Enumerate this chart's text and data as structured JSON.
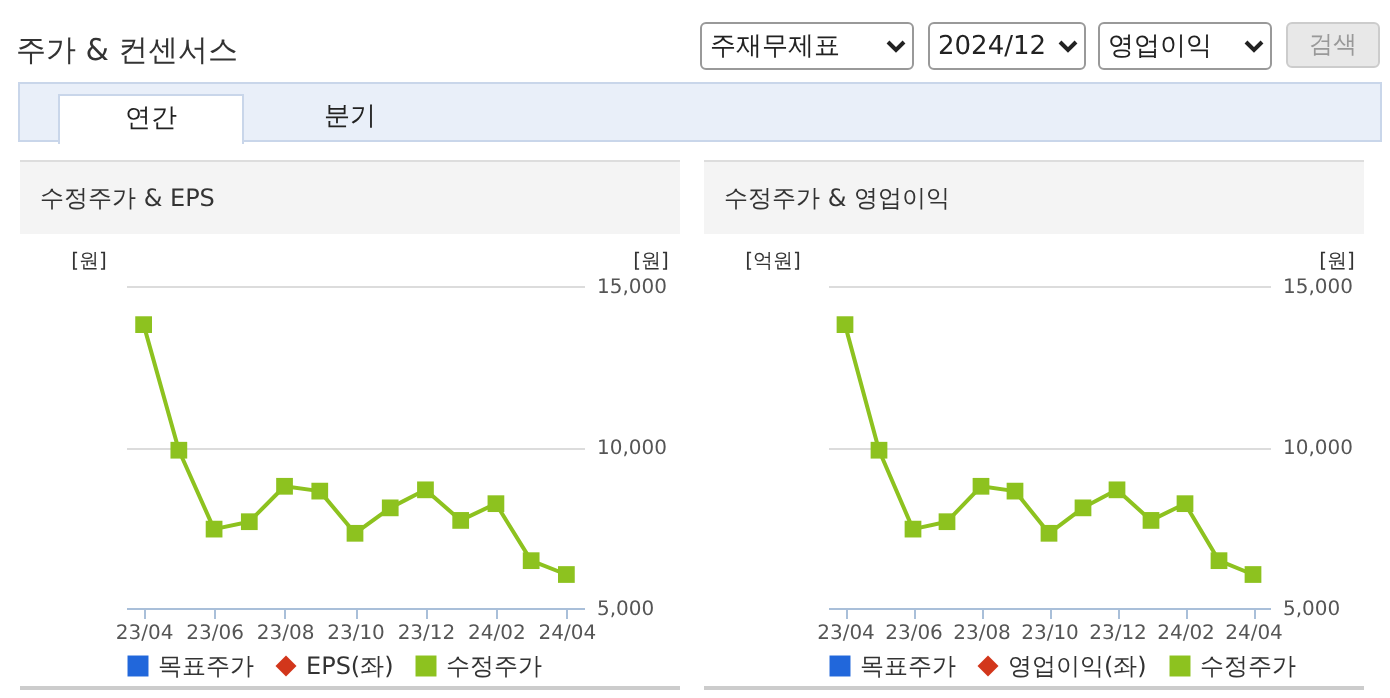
{
  "chart_data": [
    {
      "type": "other",
      "title": "주가 & 컨센서스",
      "annotations": [
        "주재무제표",
        "2024/12",
        "영업이익",
        "검색",
        "연간",
        "분기"
      ]
    },
    {
      "type": "line",
      "title": "수정주가 & EPS",
      "ylabel": "[원]",
      "y2label": "[원]",
      "categories": [
        "23/04",
        null,
        "23/06",
        null,
        "23/08",
        null,
        "23/10",
        null,
        "23/12",
        null,
        "24/02",
        null,
        "24/04"
      ],
      "series": [
        {
          "name": "목표주가",
          "type": "scatter",
          "marker": "square",
          "color": "#2167db",
          "axis": "y2",
          "values": [
            null,
            null,
            null,
            null,
            null,
            null,
            null,
            null,
            null,
            null,
            null,
            null,
            null
          ]
        },
        {
          "name": "EPS(좌)",
          "type": "line",
          "marker": "diamond",
          "color": "#d2361b",
          "axis": "y",
          "values": [
            null,
            null,
            null,
            null,
            null,
            null,
            null,
            null,
            null,
            null,
            null,
            null,
            null
          ]
        },
        {
          "name": "수정주가",
          "type": "line",
          "marker": "square",
          "color": "#8dc21f",
          "axis": "y2",
          "values": [
            13800,
            9900,
            7450,
            7680,
            8780,
            8630,
            7320,
            8110,
            8670,
            7720,
            8240,
            6470,
            6040
          ]
        }
      ],
      "y2lim": [
        5000,
        15000
      ],
      "y2ticks": [
        {
          "value": 5000,
          "label": "5,000"
        },
        {
          "value": 10000,
          "label": "10,000"
        },
        {
          "value": 15000,
          "label": "15,000"
        }
      ],
      "grid": "y",
      "legend": "bottom"
    },
    {
      "type": "line",
      "title": "수정주가 & 영업이익",
      "ylabel": "[억원]",
      "y2label": "[원]",
      "categories": [
        "23/04",
        null,
        "23/06",
        null,
        "23/08",
        null,
        "23/10",
        null,
        "23/12",
        null,
        "24/02",
        null,
        "24/04"
      ],
      "series": [
        {
          "name": "목표주가",
          "type": "scatter",
          "marker": "square",
          "color": "#2167db",
          "axis": "y2",
          "values": [
            null,
            null,
            null,
            null,
            null,
            null,
            null,
            null,
            null,
            null,
            null,
            null,
            null
          ]
        },
        {
          "name": "영업이익(좌)",
          "type": "line",
          "marker": "diamond",
          "color": "#d2361b",
          "axis": "y",
          "values": [
            null,
            null,
            null,
            null,
            null,
            null,
            null,
            null,
            null,
            null,
            null,
            null,
            null
          ]
        },
        {
          "name": "수정주가",
          "type": "line",
          "marker": "square",
          "color": "#8dc21f",
          "axis": "y2",
          "values": [
            13800,
            9900,
            7450,
            7680,
            8780,
            8630,
            7320,
            8110,
            8670,
            7720,
            8240,
            6470,
            6040
          ]
        }
      ],
      "y2lim": [
        5000,
        15000
      ],
      "y2ticks": [
        {
          "value": 5000,
          "label": "5,000"
        },
        {
          "value": 10000,
          "label": "10,000"
        },
        {
          "value": 15000,
          "label": "15,000"
        }
      ],
      "grid": "y",
      "legend": "bottom"
    }
  ]
}
